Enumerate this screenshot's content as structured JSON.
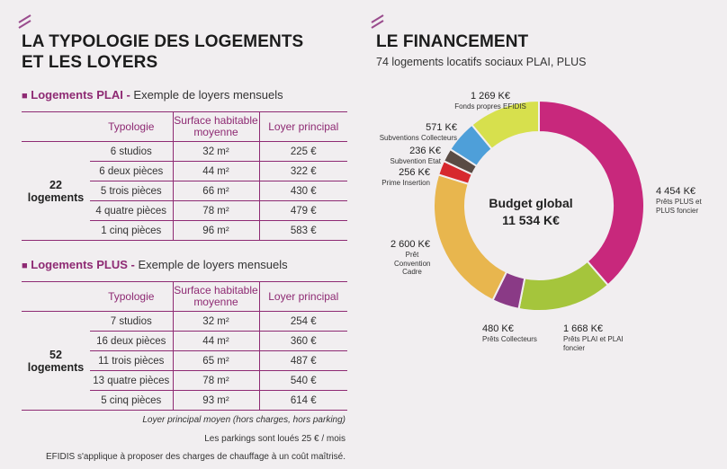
{
  "left": {
    "title_line1": "LA TYPOLOGIE DES LOGEMENTS",
    "title_line2": "ET LES LOYERS",
    "columns": [
      "Typologie",
      "Surface habitable moyenne",
      "Loyer principal"
    ],
    "plai": {
      "title_accent": "Logements PLAI -",
      "title_rest": " Exemple de loyers mensuels",
      "count_number": "22",
      "count_word": "logements",
      "rows": [
        {
          "typo": "6 studios",
          "surface": "32 m²",
          "loyer": "225 €"
        },
        {
          "typo": "6 deux pièces",
          "surface": "44 m²",
          "loyer": "322 €"
        },
        {
          "typo": "5 trois pièces",
          "surface": "66 m²",
          "loyer": "430 €"
        },
        {
          "typo": "4 quatre pièces",
          "surface": "78 m²",
          "loyer": "479 €"
        },
        {
          "typo": "1 cinq pièces",
          "surface": "96 m²",
          "loyer": "583 €"
        }
      ]
    },
    "plus": {
      "title_accent": "Logements PLUS -",
      "title_rest": " Exemple de loyers mensuels",
      "count_number": "52",
      "count_word": "logements",
      "rows": [
        {
          "typo": "7 studios",
          "surface": "32 m²",
          "loyer": "254 €"
        },
        {
          "typo": "16 deux pièces",
          "surface": "44 m²",
          "loyer": "360 €"
        },
        {
          "typo": "11 trois pièces",
          "surface": "65 m²",
          "loyer": "487 €"
        },
        {
          "typo": "13 quatre pièces",
          "surface": "78 m²",
          "loyer": "540 €"
        },
        {
          "typo": "5 cinq pièces",
          "surface": "93 m²",
          "loyer": "614 €"
        }
      ]
    },
    "notes": [
      "Loyer principal moyen (hors charges, hors parking)",
      "Les parkings sont loués 25 € / mois",
      "EFIDIS s'applique à proposer des charges de chauffage à un coût maîtrisé."
    ]
  },
  "right": {
    "title": "LE FINANCEMENT",
    "subtitle": "74 logements locatifs sociaux PLAI, PLUS",
    "center_line1": "Budget global",
    "center_line2": "11 534  K€"
  },
  "chart_data": {
    "type": "pie",
    "total_label": "11 534  K€",
    "slices": [
      {
        "amount": "4 454  K€",
        "label": "Prêts PLUS et PLUS foncier",
        "value": 4454,
        "color": "#c8287c"
      },
      {
        "amount": "1 668  K€",
        "label": "Prêts PLAI et PLAI foncier",
        "value": 1668,
        "color": "#a5c53c"
      },
      {
        "amount": "480  K€",
        "label": "Prêts Collecteurs",
        "value": 480,
        "color": "#8a3a86"
      },
      {
        "amount": "2 600  K€",
        "label": "Prêt Convention Cadre",
        "value": 2600,
        "color": "#e8b64e"
      },
      {
        "amount": "256  K€",
        "label": "Prime Insertion",
        "value": 256,
        "color": "#d7282e"
      },
      {
        "amount": "236  K€",
        "label": "Subvention Etat",
        "value": 236,
        "color": "#5a4b44"
      },
      {
        "amount": "571  K€",
        "label": "Subventions Collecteurs",
        "value": 571,
        "color": "#4e9fd9"
      },
      {
        "amount": "1 269  K€",
        "label": "Fonds propres EFIDIS",
        "value": 1269,
        "color": "#d7e04d"
      }
    ]
  }
}
